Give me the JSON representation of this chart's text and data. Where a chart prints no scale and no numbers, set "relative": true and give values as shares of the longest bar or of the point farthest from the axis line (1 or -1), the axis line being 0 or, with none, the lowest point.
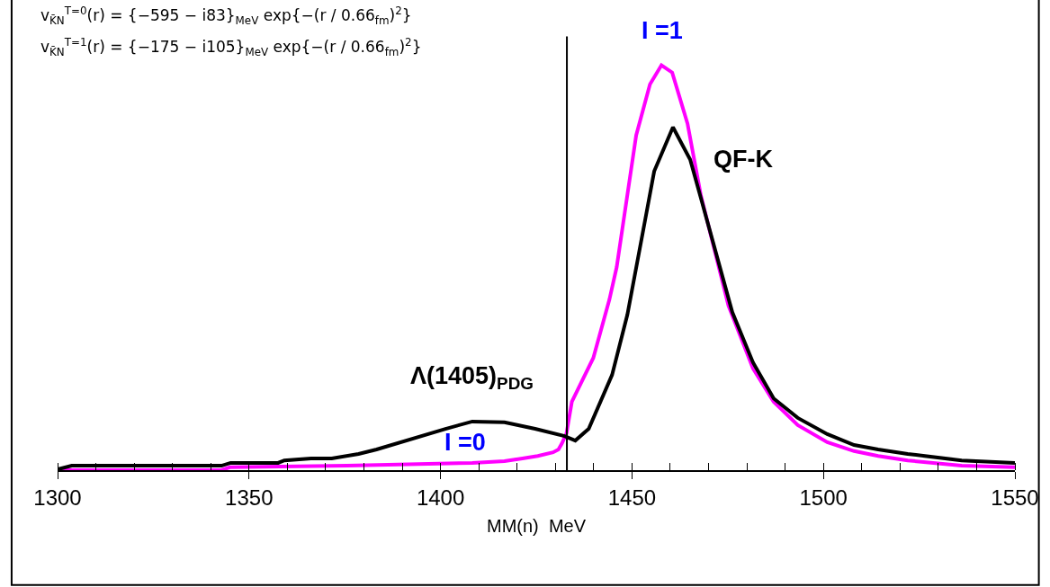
{
  "chart_data": {
    "type": "line",
    "relative": true,
    "xlabel": "MM(n)  MeV",
    "xlim": [
      1300,
      1550
    ],
    "xticks": [
      1300,
      1350,
      1400,
      1450,
      1500,
      1550
    ],
    "marker": "none",
    "line_style": "solid",
    "series": [
      {
        "color": "#ff00ff",
        "x": [
          1300,
          1342.8,
          1345,
          1375.6,
          1408.3,
          1416.7,
          1421.4,
          1425.4,
          1429.4,
          1430.8,
          1431.7,
          1432.9,
          1434.3,
          1439.9,
          1444.1,
          1446.0,
          1451.1,
          1454.7,
          1457.7,
          1460.5,
          1464.5,
          1468.0,
          1475.2,
          1481.6,
          1487.0,
          1493.3,
          1501.0,
          1508.0,
          1514.3,
          1522.0,
          1536.1,
          1550
        ],
        "values": [
          0,
          0,
          0.007,
          0.011,
          0.018,
          0.022,
          0.029,
          0.035,
          0.044,
          0.051,
          0.066,
          0.091,
          0.169,
          0.277,
          0.421,
          0.501,
          0.827,
          0.953,
          1.0,
          0.982,
          0.856,
          0.678,
          0.406,
          0.251,
          0.169,
          0.111,
          0.069,
          0.047,
          0.035,
          0.024,
          0.011,
          0.007
        ]
      },
      {
        "color": "#000000",
        "x": [
          1300,
          1303.7,
          1342.8,
          1345.2,
          1357.6,
          1359.2,
          1366.2,
          1371.6,
          1378.6,
          1383.3,
          1401.3,
          1408.3,
          1416.7,
          1424.7,
          1432.4,
          1435.2,
          1438.7,
          1444.8,
          1448.8,
          1453.5,
          1455.8,
          1460.7,
          1465.2,
          1468.2,
          1476.2,
          1481.6,
          1487.0,
          1493.3,
          1501.0,
          1508.0,
          1514.3,
          1522.0,
          1536.1,
          1550
        ],
        "values": [
          0.002,
          0.011,
          0.011,
          0.018,
          0.018,
          0.024,
          0.029,
          0.029,
          0.04,
          0.051,
          0.102,
          0.12,
          0.118,
          0.102,
          0.084,
          0.073,
          0.102,
          0.235,
          0.384,
          0.621,
          0.738,
          0.847,
          0.767,
          0.665,
          0.39,
          0.266,
          0.177,
          0.129,
          0.089,
          0.062,
          0.051,
          0.04,
          0.024,
          0.018
        ]
      }
    ],
    "ref_lines": [
      {
        "axis": "x",
        "value": 1433,
        "color": "#000000"
      }
    ],
    "annotations": [
      "v$_{K̄N}$$^{T=0}$(r) = {−595 − i83}$_{MeV}$ exp{−(r / 0.66$_{fm}$)$^{2}$}",
      "v$_{K̄N}$$^{T=1}$(r) = {−175 − i105}$_{MeV}$ exp{−(r / 0.66$_{fm}$)$^{2}$}",
      {
        "text": "I =1",
        "x": 1458,
        "y": 1.0
      },
      {
        "text": "QF-K",
        "x": 1465.2,
        "y": 0.767
      },
      {
        "text": "Λ(1405)$_{PDG}$",
        "x": 1408.3,
        "y": 0.12
      },
      {
        "text": "I =0",
        "x": 1408.3,
        "y": 0.018
      }
    ]
  }
}
